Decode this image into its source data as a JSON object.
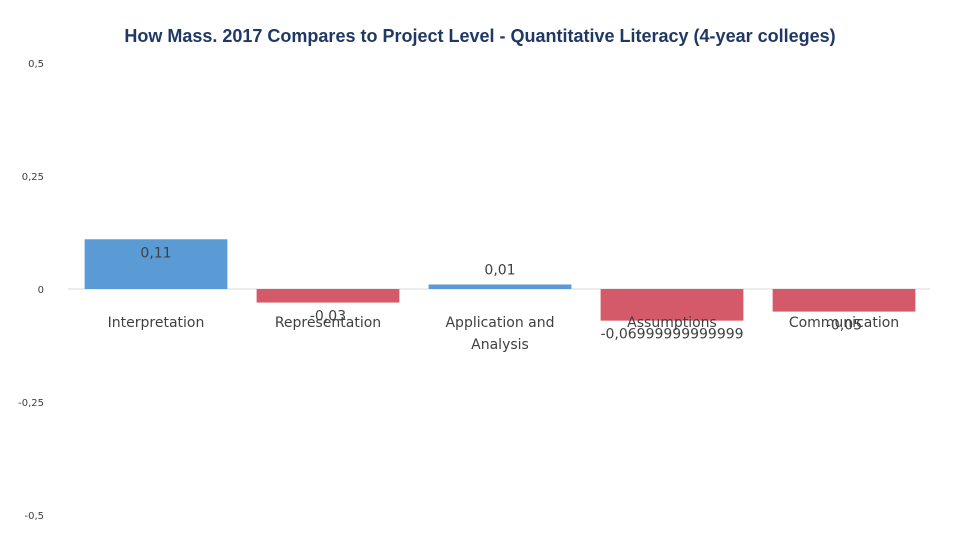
{
  "chart_data": {
    "type": "bar",
    "title": "How Mass. 2017 Compares to Project Level - Quantitative Literacy (4-year colleges)",
    "xlabel": "",
    "ylabel": "",
    "ylim": [
      -0.5,
      0.5
    ],
    "y_ticks": [
      0.5,
      0.25,
      0,
      -0.25,
      -0.5
    ],
    "y_tick_labels": [
      "0,5",
      "0,25",
      "0",
      "-0,25",
      "-0,5"
    ],
    "grid": false,
    "legend": "none",
    "categories": [
      [
        "Interpretation"
      ],
      [
        "Representation"
      ],
      [
        "Application and",
        "Analysis"
      ],
      [
        "Assumptions"
      ],
      [
        "Communication"
      ]
    ],
    "values": [
      0.11,
      -0.03,
      0.01,
      -0.07,
      -0.05
    ],
    "data_labels": [
      "0,11",
      "-0,03",
      "0,01",
      "-0,06999999999999",
      "-0,05"
    ],
    "colors": {
      "positive": "#5b9bd5",
      "negative": "#d45a6a",
      "axis": "#d9d9d9",
      "title": "#1f3864"
    }
  }
}
